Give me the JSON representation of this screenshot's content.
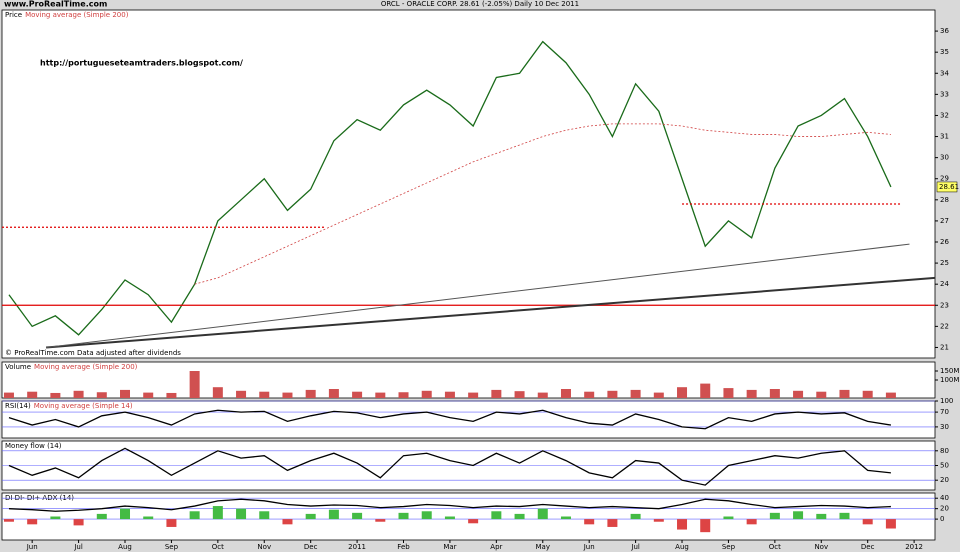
{
  "header": {
    "site": "www.ProRealTime.com",
    "title": "ORCL - ORACLE CORP.    28.61 (-2.05%)    Daily  10 Dec 2011"
  },
  "chart_data": [
    {
      "type": "line",
      "title": "Price",
      "subtitle": "Moving average (Simple 200)",
      "annotations": [
        "http://portugueseteamtraders.blogspot.com/",
        "© ProRealTime.com  Data adjusted after dividends"
      ],
      "x": [
        -0.5,
        0,
        0.5,
        1,
        1.5,
        2,
        2.5,
        3,
        3.5,
        4,
        4.5,
        5,
        5.5,
        6,
        6.5,
        7,
        7.5,
        8,
        8.5,
        9,
        9.5,
        10,
        10.5,
        11,
        11.5,
        12,
        12.5,
        13,
        13.5,
        14,
        14.5,
        15,
        15.5,
        16,
        16.5,
        17,
        17.5,
        18,
        18.5
      ],
      "xlim": [
        -0.65,
        19.45
      ],
      "xticks": [
        {
          "value": 0,
          "label": "Jun"
        },
        {
          "value": 1,
          "label": "Jul"
        },
        {
          "value": 2,
          "label": "Aug"
        },
        {
          "value": 3,
          "label": "Sep"
        },
        {
          "value": 4,
          "label": "Oct"
        },
        {
          "value": 5,
          "label": "Nov"
        },
        {
          "value": 6,
          "label": "Dec"
        },
        {
          "value": 7,
          "label": "2011"
        },
        {
          "value": 8,
          "label": "Feb"
        },
        {
          "value": 9,
          "label": "Mar"
        },
        {
          "value": 10,
          "label": "Apr"
        },
        {
          "value": 11,
          "label": "May"
        },
        {
          "value": 12,
          "label": "Jun"
        },
        {
          "value": 13,
          "label": "Jul"
        },
        {
          "value": 14,
          "label": "Aug"
        },
        {
          "value": 15,
          "label": "Sep"
        },
        {
          "value": 16,
          "label": "Oct"
        },
        {
          "value": 17,
          "label": "Nov"
        },
        {
          "value": 18,
          "label": "Dec"
        },
        {
          "value": 19,
          "label": "2012"
        }
      ],
      "ylim": [
        20.5,
        37
      ],
      "yticks": [
        21,
        22,
        23,
        24,
        25,
        26,
        27,
        28,
        29,
        30,
        31,
        32,
        33,
        34,
        35,
        36
      ],
      "series": [
        {
          "color": "#1a6b1a",
          "values": [
            23.5,
            22.0,
            22.5,
            21.6,
            22.8,
            24.2,
            23.5,
            22.2,
            24.0,
            27.0,
            28.0,
            29.0,
            27.5,
            28.5,
            30.8,
            31.8,
            31.3,
            32.5,
            33.2,
            32.5,
            31.5,
            33.8,
            34.0,
            35.5,
            34.5,
            33.0,
            31.0,
            33.5,
            32.2,
            29.0,
            25.8,
            27.0,
            26.2,
            29.5,
            31.5,
            32.0,
            32.8,
            31.0,
            28.61
          ]
        },
        {
          "color": "#d04040",
          "dashed": true,
          "values": [
            null,
            null,
            null,
            null,
            null,
            null,
            null,
            null,
            24.0,
            24.3,
            24.8,
            25.3,
            25.8,
            26.3,
            26.8,
            27.3,
            27.8,
            28.3,
            28.8,
            29.3,
            29.8,
            30.2,
            30.6,
            31.0,
            31.3,
            31.5,
            31.6,
            31.6,
            31.6,
            31.5,
            31.3,
            31.2,
            31.1,
            31.1,
            31.0,
            31.0,
            31.1,
            31.2,
            31.1
          ]
        }
      ],
      "levels": [
        {
          "value": 23,
          "x": [
            -0.65,
            19.45
          ],
          "color": "#e00000",
          "dashed": false
        },
        {
          "value": 26.7,
          "x": [
            -0.65,
            6.3
          ],
          "color": "#e00000",
          "dashed": true
        },
        {
          "value": 27.8,
          "x": [
            14.0,
            18.7
          ],
          "color": "#e00000",
          "dashed": true
        }
      ],
      "trendlines": [
        {
          "x": [
            0.3,
            19.45
          ],
          "y": [
            21.0,
            24.3
          ],
          "color": "#333333",
          "width": 2
        },
        {
          "x": [
            0.3,
            18.9
          ],
          "y": [
            21.0,
            25.9
          ],
          "color": "#555555",
          "width": 1
        }
      ]
    },
    {
      "type": "bar",
      "title": "Volume",
      "subtitle": "Moving average (Simple 200)",
      "color": "#d05050",
      "ylim": [
        0,
        200
      ],
      "yticks": [
        {
          "value": 100,
          "label": "100M"
        },
        {
          "value": 150,
          "label": "150M"
        }
      ],
      "values": [
        30,
        35,
        28,
        40,
        32,
        45,
        30,
        28,
        150,
        60,
        40,
        35,
        30,
        45,
        50,
        35,
        30,
        32,
        40,
        35,
        30,
        45,
        38,
        30,
        50,
        35,
        40,
        45,
        30,
        60,
        80,
        55,
        45,
        50,
        40,
        35,
        45,
        40,
        30
      ]
    },
    {
      "type": "line",
      "title": "RSI(14)",
      "subtitle": "Moving average (Simple 14)",
      "ylim": [
        0,
        100
      ],
      "yticks": [
        30,
        70,
        100
      ],
      "series": [
        {
          "color": "#000000",
          "values": [
            55,
            35,
            50,
            30,
            60,
            70,
            55,
            35,
            65,
            75,
            70,
            72,
            45,
            60,
            72,
            68,
            55,
            65,
            70,
            55,
            45,
            70,
            65,
            75,
            55,
            40,
            35,
            65,
            50,
            30,
            25,
            55,
            45,
            65,
            70,
            65,
            68,
            45,
            35
          ]
        }
      ]
    },
    {
      "type": "line",
      "title": "Money flow (14)",
      "ylim": [
        0,
        100
      ],
      "yticks": [
        20,
        50,
        80
      ],
      "series": [
        {
          "color": "#000000",
          "values": [
            50,
            30,
            45,
            25,
            60,
            85,
            60,
            30,
            55,
            80,
            65,
            70,
            40,
            60,
            75,
            55,
            25,
            70,
            75,
            60,
            50,
            75,
            55,
            80,
            60,
            35,
            25,
            60,
            55,
            20,
            10,
            50,
            60,
            70,
            65,
            75,
            80,
            40,
            35
          ]
        }
      ]
    },
    {
      "type": "combo",
      "title": "DI DI- DI+ ADX (14)",
      "ylim": [
        -40,
        50
      ],
      "yticks": [
        0,
        20,
        40
      ],
      "series": [
        {
          "type": "bar",
          "color": "#44bb44",
          "negative_color": "#dd4444",
          "values": [
            -5,
            -10,
            5,
            -12,
            10,
            20,
            5,
            -15,
            15,
            25,
            20,
            15,
            -10,
            10,
            18,
            12,
            -5,
            12,
            15,
            5,
            -8,
            15,
            10,
            20,
            5,
            -10,
            -15,
            10,
            -5,
            -20,
            -25,
            5,
            -10,
            12,
            15,
            10,
            12,
            -10,
            -18
          ]
        },
        {
          "type": "line",
          "color": "#000000",
          "values": [
            20,
            18,
            15,
            17,
            20,
            25,
            22,
            18,
            25,
            35,
            38,
            35,
            28,
            25,
            27,
            26,
            22,
            24,
            28,
            26,
            22,
            25,
            24,
            28,
            25,
            22,
            24,
            22,
            20,
            28,
            38,
            35,
            28,
            22,
            24,
            26,
            25,
            22,
            24
          ]
        }
      ]
    }
  ]
}
